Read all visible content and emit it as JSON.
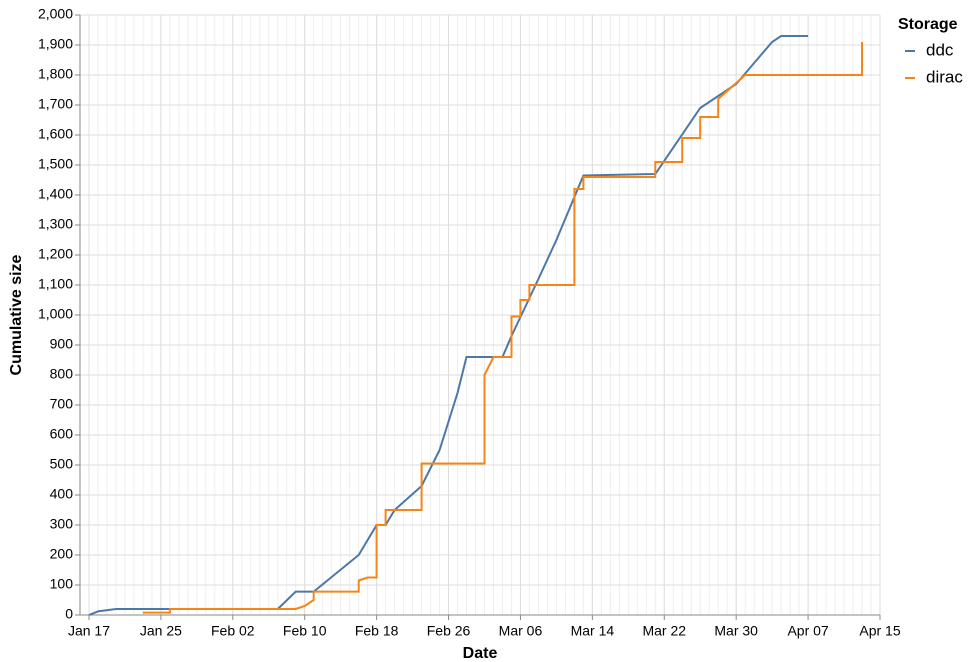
{
  "chart_data": {
    "type": "line",
    "xlabel": "Date",
    "ylabel": "Cumulative size",
    "legend_title": "Storage",
    "legend": "top-right",
    "grid": true,
    "xlim": [
      "Jan 16",
      "Apr 15"
    ],
    "xticks": [
      "Jan 17",
      "Jan 25",
      "Feb 02",
      "Feb 10",
      "Feb 18",
      "Feb 26",
      "Mar 06",
      "Mar 14",
      "Mar 22",
      "Mar 30",
      "Apr 07",
      "Apr 15"
    ],
    "ylim": [
      0,
      2000
    ],
    "yticks": [
      0,
      100,
      200,
      300,
      400,
      500,
      600,
      700,
      800,
      900,
      {
        "value": 1000,
        "label": "1,000"
      },
      {
        "value": 1100,
        "label": "1,100"
      },
      {
        "value": 1200,
        "label": "1,200"
      },
      {
        "value": 1300,
        "label": "1,300"
      },
      {
        "value": 1400,
        "label": "1,400"
      },
      {
        "value": 1500,
        "label": "1,500"
      },
      {
        "value": 1600,
        "label": "1,600"
      },
      {
        "value": 1700,
        "label": "1,700"
      },
      {
        "value": 1800,
        "label": "1,800"
      },
      {
        "value": 1900,
        "label": "1,900"
      },
      {
        "value": 2000,
        "label": "2,000"
      }
    ],
    "series": [
      {
        "name": "ddc",
        "color": "#4c78a8",
        "x": [
          "Jan 17",
          "Jan 18",
          "Jan 20",
          "Feb 07",
          "Feb 09",
          "Feb 11",
          "Feb 16",
          "Feb 18",
          "Feb 19",
          "Feb 20",
          "Feb 23",
          "Feb 25",
          "Feb 27",
          "Feb 28",
          "Mar 04",
          "Mar 05",
          "Mar 08",
          "Mar 10",
          "Mar 13",
          "Mar 21",
          "Mar 26",
          "Mar 30",
          "Apr 03",
          "Apr 04",
          "Apr 07"
        ],
        "values": [
          0,
          12,
          20,
          20,
          78,
          78,
          200,
          300,
          300,
          350,
          430,
          550,
          740,
          860,
          860,
          930,
          1120,
          1250,
          1465,
          1470,
          1690,
          1770,
          1910,
          1930,
          1930
        ]
      },
      {
        "name": "dirac",
        "color": "#f58518",
        "x": [
          "Jan 23",
          "Jan 26",
          "Jan 26",
          "Feb 09",
          "Feb 10",
          "Feb 11",
          "Feb 11",
          "Feb 16",
          "Feb 16",
          "Feb 17",
          "Feb 18",
          "Feb 18",
          "Feb 19",
          "Feb 19",
          "Feb 23",
          "Feb 23",
          "Mar 02",
          "Mar 02",
          "Mar 03",
          "Mar 05",
          "Mar 05",
          "Mar 06",
          "Mar 06",
          "Mar 07",
          "Mar 07",
          "Mar 12",
          "Mar 12",
          "Mar 13",
          "Mar 13",
          "Mar 21",
          "Mar 21",
          "Mar 24",
          "Mar 24",
          "Mar 26",
          "Mar 26",
          "Mar 28",
          "Mar 28",
          "Mar 31",
          "Apr 13",
          "Apr 13"
        ],
        "values": [
          8,
          8,
          20,
          20,
          30,
          50,
          78,
          78,
          115,
          125,
          125,
          300,
          300,
          350,
          350,
          505,
          505,
          800,
          860,
          860,
          995,
          995,
          1050,
          1050,
          1100,
          1100,
          1420,
          1420,
          1460,
          1460,
          1510,
          1510,
          1590,
          1590,
          1660,
          1660,
          1720,
          1800,
          1800,
          1910
        ]
      }
    ]
  }
}
